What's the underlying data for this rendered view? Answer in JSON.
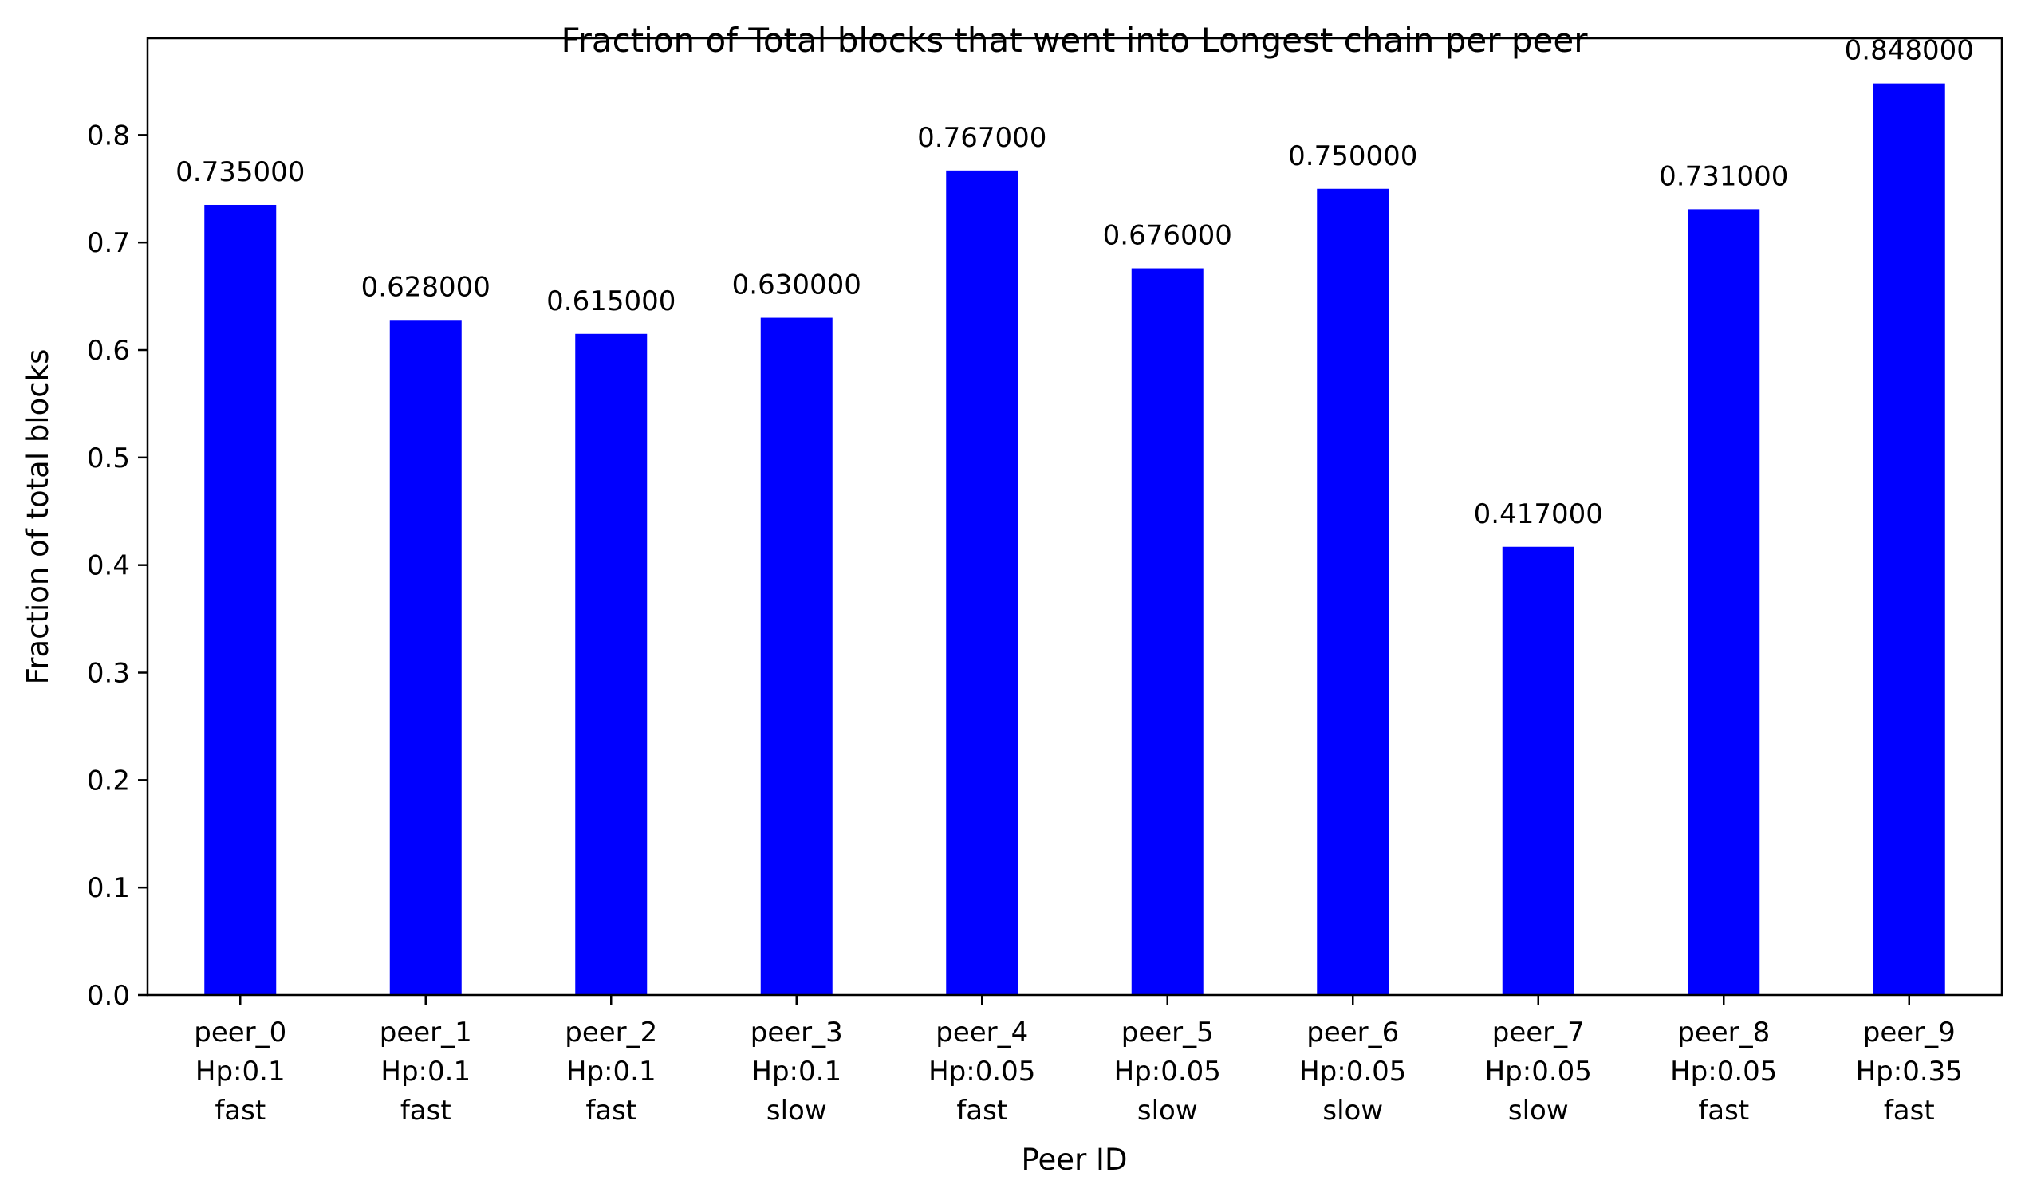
{
  "chart_data": {
    "type": "bar",
    "title": "Fraction of Total blocks that went into Longest chain per peer",
    "xlabel": "Peer ID",
    "ylabel": "Fraction of total blocks",
    "categories": [
      [
        "peer_0",
        "Hp:0.1",
        "fast"
      ],
      [
        "peer_1",
        "Hp:0.1",
        "fast"
      ],
      [
        "peer_2",
        "Hp:0.1",
        "fast"
      ],
      [
        "peer_3",
        "Hp:0.1",
        "slow"
      ],
      [
        "peer_4",
        "Hp:0.05",
        "fast"
      ],
      [
        "peer_5",
        "Hp:0.05",
        "slow"
      ],
      [
        "peer_6",
        "Hp:0.05",
        "slow"
      ],
      [
        "peer_7",
        "Hp:0.05",
        "slow"
      ],
      [
        "peer_8",
        "Hp:0.05",
        "fast"
      ],
      [
        "peer_9",
        "Hp:0.35",
        "fast"
      ]
    ],
    "values": [
      0.735,
      0.628,
      0.615,
      0.63,
      0.767,
      0.676,
      0.75,
      0.417,
      0.731,
      0.848
    ],
    "value_labels": [
      "0.735000",
      "0.628000",
      "0.615000",
      "0.630000",
      "0.767000",
      "0.676000",
      "0.750000",
      "0.417000",
      "0.731000",
      "0.848000"
    ],
    "yticks": [
      "0.0",
      "0.1",
      "0.2",
      "0.3",
      "0.4",
      "0.5",
      "0.6",
      "0.7",
      "0.8"
    ],
    "ylim": [
      0,
      0.89
    ],
    "grid": false,
    "bar_color": "#0000ff"
  }
}
